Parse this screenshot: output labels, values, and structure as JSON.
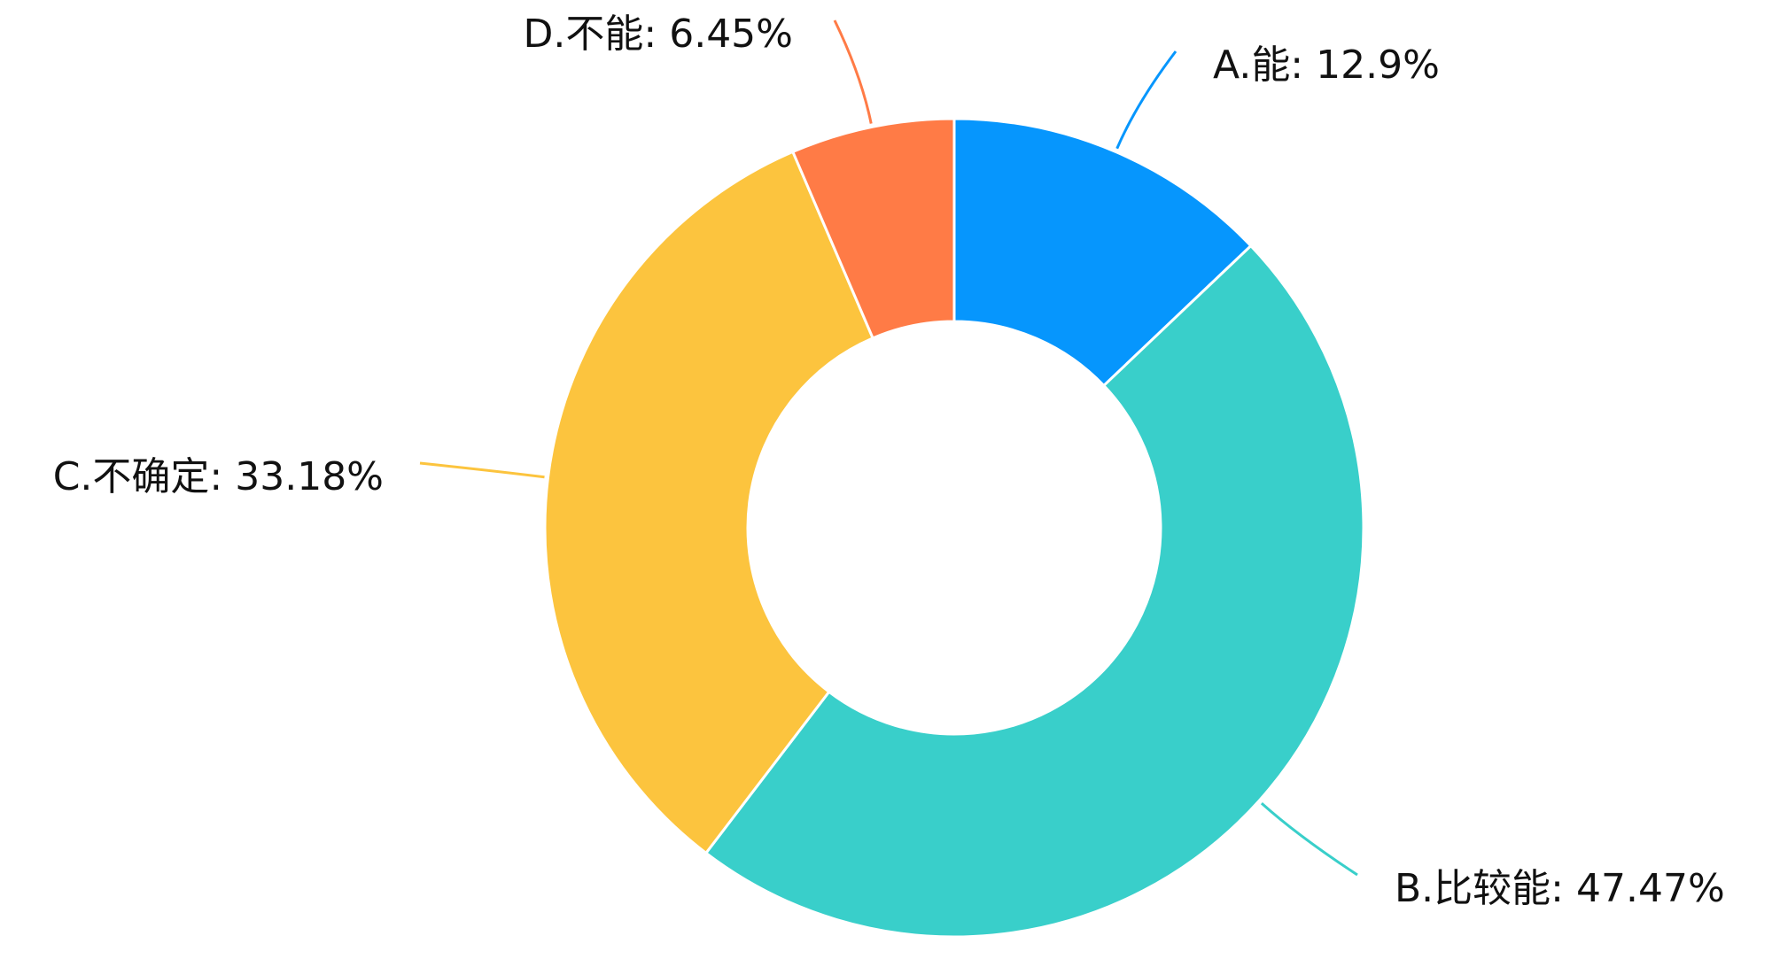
{
  "chart_data": {
    "type": "pie",
    "values": [
      12.9,
      47.47,
      33.18,
      6.45
    ],
    "value_labels": [
      "A.能: 12.9%",
      "B.比较能: 47.47%",
      "C.不确定: 33.18%",
      "D.不能: 6.45%"
    ],
    "colors": [
      "#0696fd",
      "#39cfca",
      "#fcc43e",
      "#ff7b46"
    ],
    "donut": true
  }
}
